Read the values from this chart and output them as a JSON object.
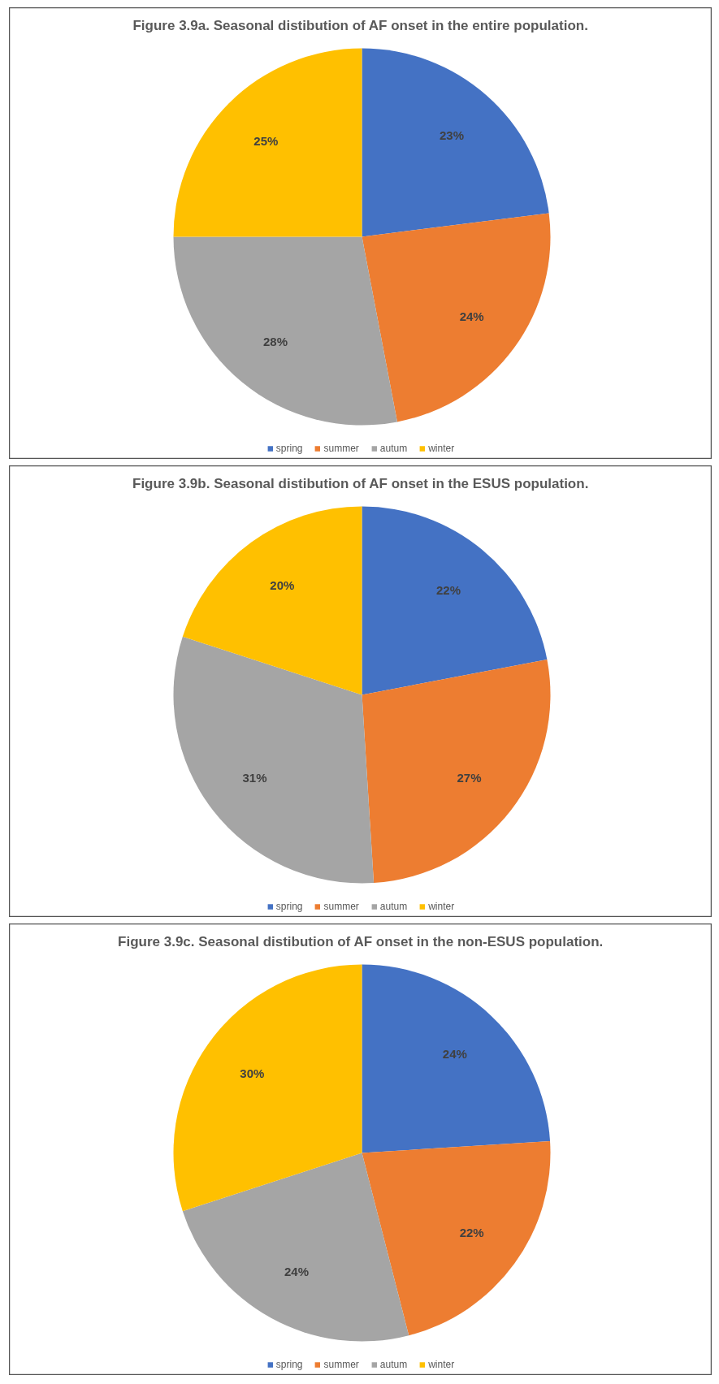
{
  "chart_data": [
    {
      "type": "pie",
      "title": "Figure 3.9a. Seasonal distibution of AF onset in the entire population.",
      "categories": [
        "spring",
        "summer",
        "autum",
        "winter"
      ],
      "values": [
        23,
        24,
        28,
        25
      ],
      "value_labels": [
        "23%",
        "24%",
        "28%",
        "25%"
      ],
      "colors": [
        "#4472c4",
        "#ed7d31",
        "#a5a5a5",
        "#ffc000"
      ],
      "legend": "bottom"
    },
    {
      "type": "pie",
      "title": "Figure 3.9b. Seasonal distibution of AF onset in the ESUS population.",
      "categories": [
        "spring",
        "summer",
        "autum",
        "winter"
      ],
      "values": [
        22,
        27,
        31,
        20
      ],
      "value_labels": [
        "22%",
        "27%",
        "31%",
        "20%"
      ],
      "colors": [
        "#4472c4",
        "#ed7d31",
        "#a5a5a5",
        "#ffc000"
      ],
      "legend": "bottom"
    },
    {
      "type": "pie",
      "title": "Figure 3.9c. Seasonal distibution of AF onset in the non-ESUS population.",
      "categories": [
        "spring",
        "summer",
        "autum",
        "winter"
      ],
      "values": [
        24,
        22,
        24,
        30
      ],
      "value_labels": [
        "24%",
        "22%",
        "24%",
        "30%"
      ],
      "colors": [
        "#4472c4",
        "#ed7d31",
        "#a5a5a5",
        "#ffc000"
      ],
      "legend": "bottom"
    }
  ]
}
